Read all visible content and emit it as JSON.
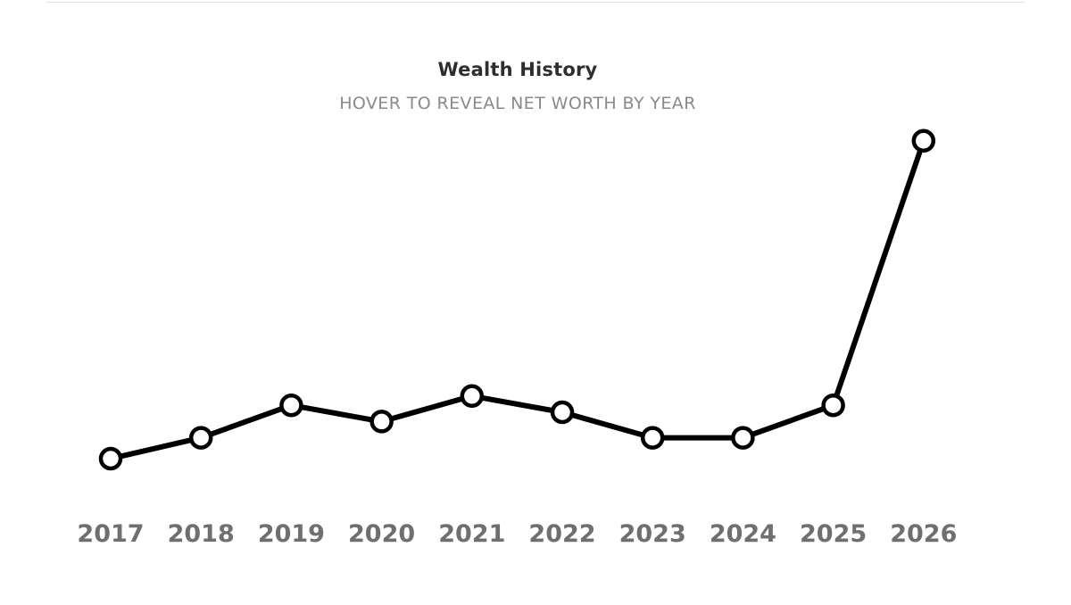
{
  "chart_data": {
    "type": "line",
    "title": "Wealth History",
    "subtitle": "HOVER TO REVEAL NET WORTH BY YEAR",
    "categories": [
      "2017",
      "2018",
      "2019",
      "2020",
      "2021",
      "2022",
      "2023",
      "2024",
      "2025",
      "2026"
    ],
    "series": [
      {
        "values": [
          1.0,
          1.9,
          3.3,
          2.6,
          3.7,
          3.0,
          1.9,
          1.9,
          3.3,
          14.7
        ]
      }
    ],
    "ylim": [
      0,
      15
    ],
    "grid": false,
    "line_color": "#000000",
    "marker_fill": "#ffffff"
  }
}
